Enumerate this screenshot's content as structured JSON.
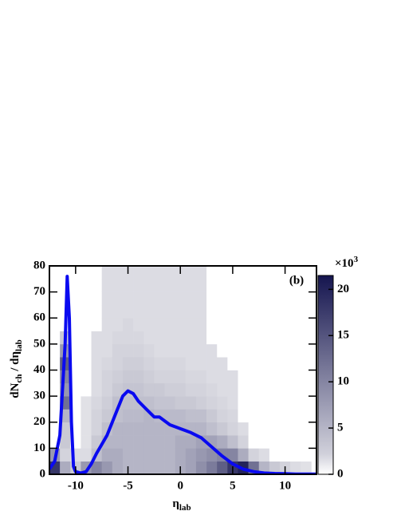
{
  "chart_data": {
    "type": "heatmap-line",
    "annotation": "(b)",
    "xlabel": [
      "η",
      "lab"
    ],
    "ylabel": [
      "dN",
      "ch",
      " / dη",
      "lab"
    ],
    "colorbar_label": [
      "×10",
      "3"
    ],
    "xlim": [
      -12.5,
      13
    ],
    "ylim": [
      0,
      80
    ],
    "xticks": [
      -10,
      -5,
      0,
      5,
      10
    ],
    "yticks": [
      0,
      10,
      20,
      30,
      40,
      50,
      60,
      70,
      80
    ],
    "clim": [
      0,
      21.5
    ],
    "cticks": [
      0,
      5,
      10,
      15,
      20
    ],
    "color_low": "#e6e6ea",
    "color_high": "#15154f",
    "xbins": [
      -12.5,
      -11.5,
      -10.5,
      -9.5,
      -8.5,
      -7.5,
      -6.5,
      -5.5,
      -4.5,
      -3.5,
      -2.5,
      -1.5,
      -0.5,
      0.5,
      1.5,
      2.5,
      3.5,
      4.5,
      5.5,
      6.5,
      7.5,
      8.5,
      9.5,
      10.5,
      11.5,
      12.5
    ],
    "ybins": [
      0,
      5,
      10,
      15,
      20,
      25,
      30,
      35,
      40,
      45,
      50,
      55,
      60,
      65,
      70,
      75,
      80
    ],
    "z": [
      [
        18,
        8,
        0,
        0,
        0,
        0,
        0,
        0,
        0,
        0,
        0,
        0,
        0,
        0,
        0,
        0
      ],
      [
        6,
        2,
        3,
        3,
        5,
        12,
        8,
        10,
        14,
        8,
        3,
        0,
        0,
        0,
        0,
        0
      ],
      [
        3,
        1,
        0,
        0,
        0,
        0,
        0,
        0,
        0,
        0,
        0,
        0,
        0,
        0,
        0,
        0
      ],
      [
        8,
        1,
        0.5,
        0.5,
        0.5,
        0.5,
        0,
        0,
        0,
        0,
        0,
        0,
        0,
        0,
        0,
        0
      ],
      [
        10,
        4,
        3,
        2,
        2,
        1.5,
        1,
        1,
        1,
        1,
        1,
        0,
        0,
        0,
        0,
        0
      ],
      [
        8,
        6,
        5,
        4,
        3,
        2.5,
        2,
        2,
        1.5,
        1,
        1,
        1,
        1,
        1,
        1,
        1
      ],
      [
        6,
        6,
        5,
        5,
        4,
        4,
        3,
        2.5,
        2,
        2,
        1.5,
        1,
        1,
        1,
        1,
        1
      ],
      [
        5,
        5,
        5,
        5,
        4.5,
        4,
        3.5,
        3,
        2.5,
        2,
        1.5,
        1.5,
        1,
        1,
        1,
        1
      ],
      [
        5,
        5,
        5,
        5,
        4.5,
        4,
        3.5,
        3,
        2.5,
        2,
        1.5,
        1,
        1,
        1,
        1,
        1
      ],
      [
        5,
        5,
        5,
        5,
        5,
        4,
        3,
        2.5,
        2,
        1.5,
        1,
        1,
        1,
        1,
        1,
        1
      ],
      [
        5,
        5,
        5,
        5,
        4.5,
        3.5,
        3,
        2,
        1.5,
        1,
        1,
        1,
        1,
        1,
        1,
        1
      ],
      [
        5,
        5,
        5,
        5,
        4.5,
        3.5,
        2.5,
        2,
        1.5,
        1,
        1,
        1,
        1,
        1,
        1,
        1
      ],
      [
        6,
        6,
        6,
        5,
        4.5,
        3,
        2.5,
        2,
        1.5,
        1,
        1,
        1,
        1,
        1,
        1,
        1
      ],
      [
        7,
        7,
        6,
        5,
        4,
        3,
        2,
        1.5,
        1,
        1,
        1,
        1,
        1,
        1,
        1,
        1
      ],
      [
        9,
        8,
        7,
        5,
        4,
        2.5,
        2,
        1.5,
        1,
        1,
        1,
        1,
        1,
        1,
        1,
        1
      ],
      [
        11,
        9,
        7,
        4,
        3,
        2,
        1.5,
        1,
        1,
        1,
        0,
        0,
        0,
        0,
        0,
        0
      ],
      [
        14,
        10,
        6,
        3,
        2,
        1.5,
        1,
        1,
        1,
        0,
        0,
        0,
        0,
        0,
        0,
        0
      ],
      [
        18,
        10,
        4,
        2,
        1.5,
        1,
        1,
        1,
        0,
        0,
        0,
        0,
        0,
        0,
        0,
        0
      ],
      [
        20,
        6,
        2,
        1,
        0,
        0,
        0,
        0,
        0,
        0,
        0,
        0,
        0,
        0,
        0,
        0
      ],
      [
        12,
        2,
        0,
        0,
        0,
        0,
        0,
        0,
        0,
        0,
        0,
        0,
        0,
        0,
        0,
        0
      ],
      [
        5,
        1,
        0,
        0,
        0,
        0,
        0,
        0,
        0,
        0,
        0,
        0,
        0,
        0,
        0,
        0
      ],
      [
        3,
        0,
        0,
        0,
        0,
        0,
        0,
        0,
        0,
        0,
        0,
        0,
        0,
        0,
        0,
        0
      ],
      [
        2,
        0,
        0,
        0,
        0,
        0,
        0,
        0,
        0,
        0,
        0,
        0,
        0,
        0,
        0,
        0
      ],
      [
        1,
        0,
        0,
        0,
        0,
        0,
        0,
        0,
        0,
        0,
        0,
        0,
        0,
        0,
        0,
        0
      ],
      [
        0.5,
        0,
        0,
        0,
        0,
        0,
        0,
        0,
        0,
        0,
        0,
        0,
        0,
        0,
        0,
        0
      ]
    ],
    "line": {
      "color": "#0a0af0",
      "x": [
        -12.5,
        -12,
        -11.5,
        -11,
        -10.8,
        -10.6,
        -10.4,
        -10.2,
        -10,
        -9.5,
        -9,
        -8.5,
        -8,
        -7,
        -6,
        -5.5,
        -5,
        -4.5,
        -4,
        -3,
        -2.5,
        -2,
        -1.5,
        -1,
        0,
        1,
        2,
        3,
        4,
        5,
        6,
        7,
        8,
        9,
        10,
        11,
        12,
        13
      ],
      "values": [
        2,
        5,
        15,
        50,
        76,
        60,
        20,
        3,
        1,
        0.5,
        1,
        4,
        8,
        15,
        25,
        30,
        32,
        31,
        28,
        24,
        22,
        22,
        20.5,
        19,
        17.5,
        16,
        14,
        10.5,
        7,
        4,
        2,
        1,
        0.5,
        0.3,
        0.2,
        0.1,
        0.1,
        0.1
      ]
    }
  }
}
